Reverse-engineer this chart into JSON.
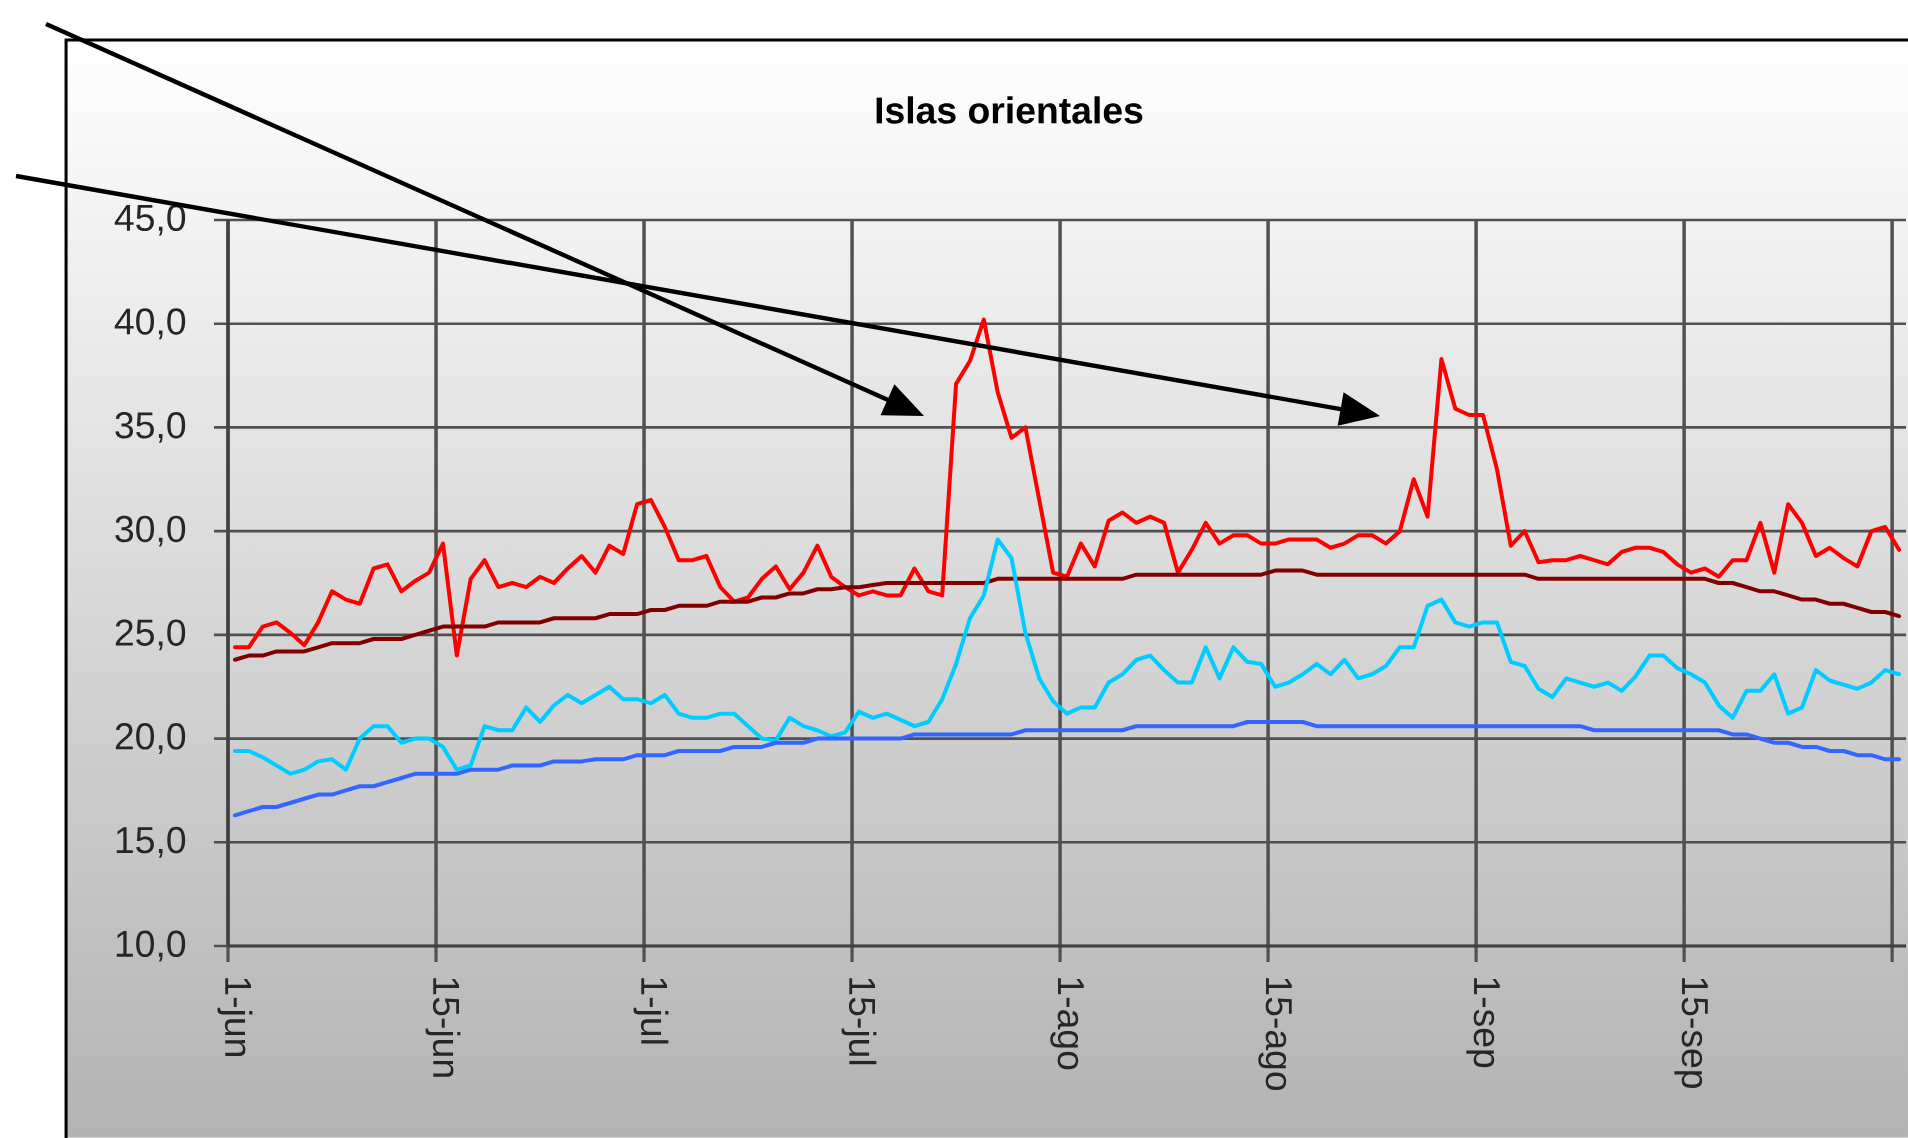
{
  "chart_data": {
    "type": "line",
    "title": "Islas orientales",
    "categories": [
      "1-jun",
      null,
      null,
      null,
      null,
      null,
      null,
      null,
      null,
      null,
      null,
      null,
      null,
      null,
      null,
      "15-jun",
      null,
      null,
      null,
      null,
      null,
      null,
      null,
      null,
      null,
      null,
      null,
      null,
      null,
      null,
      "1-jul",
      null,
      null,
      null,
      null,
      null,
      null,
      null,
      null,
      null,
      null,
      null,
      null,
      null,
      null,
      "15-jul",
      null,
      null,
      null,
      null,
      null,
      null,
      null,
      null,
      null,
      null,
      null,
      null,
      null,
      null,
      "1-ago",
      null,
      null,
      null,
      null,
      null,
      null,
      null,
      null,
      null,
      null,
      null,
      null,
      null,
      null,
      "15-ago",
      null,
      null,
      null,
      null,
      null,
      null,
      null,
      null,
      null,
      null,
      null,
      null,
      null,
      null,
      "1-sep",
      null,
      null,
      null,
      null,
      null,
      null,
      null,
      null,
      null,
      null,
      null,
      null,
      null,
      null,
      "15-sep",
      null,
      null,
      null,
      null,
      null,
      null,
      null,
      null,
      null,
      null,
      null,
      null,
      null,
      null,
      null
    ],
    "series": [
      {
        "color": "#ff0000",
        "values": [
          24.4,
          24.4,
          25.4,
          25.6,
          25.1,
          24.5,
          25.6,
          27.1,
          26.7,
          26.5,
          28.2,
          28.4,
          27.1,
          27.6,
          28.0,
          29.4,
          24.0,
          27.7,
          28.6,
          27.3,
          27.5,
          27.3,
          27.8,
          27.5,
          28.2,
          28.8,
          28.0,
          29.3,
          28.9,
          31.3,
          31.5,
          30.2,
          28.6,
          28.6,
          28.8,
          27.3,
          26.6,
          26.8,
          27.7,
          28.3,
          27.2,
          28.0,
          29.3,
          27.8,
          27.3,
          26.9,
          27.1,
          26.9,
          26.9,
          28.2,
          27.1,
          26.9,
          37.1,
          38.2,
          40.2,
          36.7,
          34.5,
          35.0,
          31.5,
          28.0,
          27.8,
          29.4,
          28.3,
          30.5,
          30.9,
          30.4,
          30.7,
          30.4,
          28.0,
          29.1,
          30.4,
          29.4,
          29.8,
          29.8,
          29.4,
          29.4,
          29.6,
          29.6,
          29.6,
          29.2,
          29.4,
          29.8,
          29.8,
          29.4,
          30.0,
          32.5,
          30.7,
          38.3,
          35.9,
          35.6,
          35.6,
          33.0,
          29.3,
          30.0,
          28.5,
          28.6,
          28.6,
          28.8,
          28.6,
          28.4,
          29.0,
          29.2,
          29.2,
          29.0,
          28.4,
          28.0,
          28.2,
          27.8,
          28.6,
          28.6,
          30.4,
          28.0,
          31.3,
          30.4,
          28.8,
          29.2,
          28.7,
          28.3,
          30.0,
          30.2,
          29.1
        ]
      },
      {
        "color": "#800000",
        "values": [
          23.8,
          24.0,
          24.0,
          24.2,
          24.2,
          24.2,
          24.4,
          24.6,
          24.6,
          24.6,
          24.8,
          24.8,
          24.8,
          25.0,
          25.2,
          25.4,
          25.4,
          25.4,
          25.4,
          25.6,
          25.6,
          25.6,
          25.6,
          25.8,
          25.8,
          25.8,
          25.8,
          26.0,
          26.0,
          26.0,
          26.2,
          26.2,
          26.4,
          26.4,
          26.4,
          26.6,
          26.6,
          26.6,
          26.8,
          26.8,
          27.0,
          27.0,
          27.2,
          27.2,
          27.3,
          27.3,
          27.4,
          27.5,
          27.5,
          27.5,
          27.5,
          27.5,
          27.5,
          27.5,
          27.5,
          27.7,
          27.7,
          27.7,
          27.7,
          27.7,
          27.7,
          27.7,
          27.7,
          27.7,
          27.7,
          27.9,
          27.9,
          27.9,
          27.9,
          27.9,
          27.9,
          27.9,
          27.9,
          27.9,
          27.9,
          28.1,
          28.1,
          28.1,
          27.9,
          27.9,
          27.9,
          27.9,
          27.9,
          27.9,
          27.9,
          27.9,
          27.9,
          27.9,
          27.9,
          27.9,
          27.9,
          27.9,
          27.9,
          27.9,
          27.7,
          27.7,
          27.7,
          27.7,
          27.7,
          27.7,
          27.7,
          27.7,
          27.7,
          27.7,
          27.7,
          27.7,
          27.7,
          27.5,
          27.5,
          27.3,
          27.1,
          27.1,
          26.9,
          26.7,
          26.7,
          26.5,
          26.5,
          26.3,
          26.1,
          26.1,
          25.9
        ]
      },
      {
        "color": "#00ccff",
        "values": [
          19.4,
          19.4,
          19.1,
          18.7,
          18.3,
          18.5,
          18.9,
          19.0,
          18.5,
          20.0,
          20.6,
          20.6,
          19.8,
          20.0,
          20.0,
          19.6,
          18.5,
          18.7,
          20.6,
          20.4,
          20.4,
          21.5,
          20.8,
          21.6,
          22.1,
          21.7,
          22.1,
          22.5,
          21.9,
          21.9,
          21.7,
          22.1,
          21.2,
          21.0,
          21.0,
          21.2,
          21.2,
          20.6,
          20.0,
          19.9,
          21.0,
          20.6,
          20.4,
          20.1,
          20.3,
          21.3,
          21.0,
          21.2,
          20.9,
          20.6,
          20.8,
          21.9,
          23.6,
          25.8,
          26.9,
          29.6,
          28.7,
          25.1,
          22.9,
          21.8,
          21.2,
          21.5,
          21.5,
          22.7,
          23.1,
          23.8,
          24.0,
          23.3,
          22.7,
          22.7,
          24.4,
          22.9,
          24.4,
          23.7,
          23.6,
          22.5,
          22.7,
          23.1,
          23.6,
          23.1,
          23.8,
          22.9,
          23.1,
          23.5,
          24.4,
          24.4,
          26.4,
          26.7,
          25.6,
          25.4,
          25.6,
          25.6,
          23.7,
          23.5,
          22.4,
          22.0,
          22.9,
          22.7,
          22.5,
          22.7,
          22.3,
          23.0,
          24.0,
          24.0,
          23.4,
          23.1,
          22.7,
          21.6,
          21.0,
          22.3,
          22.3,
          23.1,
          21.2,
          21.5,
          23.3,
          22.8,
          22.6,
          22.4,
          22.7,
          23.3,
          23.1
        ]
      },
      {
        "color": "#3366ff",
        "values": [
          16.3,
          16.5,
          16.7,
          16.7,
          16.9,
          17.1,
          17.3,
          17.3,
          17.5,
          17.7,
          17.7,
          17.9,
          18.1,
          18.3,
          18.3,
          18.3,
          18.3,
          18.5,
          18.5,
          18.5,
          18.7,
          18.7,
          18.7,
          18.9,
          18.9,
          18.9,
          19.0,
          19.0,
          19.0,
          19.2,
          19.2,
          19.2,
          19.4,
          19.4,
          19.4,
          19.4,
          19.6,
          19.6,
          19.6,
          19.8,
          19.8,
          19.8,
          20.0,
          20.0,
          20.0,
          20.0,
          20.0,
          20.0,
          20.0,
          20.2,
          20.2,
          20.2,
          20.2,
          20.2,
          20.2,
          20.2,
          20.2,
          20.4,
          20.4,
          20.4,
          20.4,
          20.4,
          20.4,
          20.4,
          20.4,
          20.6,
          20.6,
          20.6,
          20.6,
          20.6,
          20.6,
          20.6,
          20.6,
          20.8,
          20.8,
          20.8,
          20.8,
          20.8,
          20.6,
          20.6,
          20.6,
          20.6,
          20.6,
          20.6,
          20.6,
          20.6,
          20.6,
          20.6,
          20.6,
          20.6,
          20.6,
          20.6,
          20.6,
          20.6,
          20.6,
          20.6,
          20.6,
          20.6,
          20.4,
          20.4,
          20.4,
          20.4,
          20.4,
          20.4,
          20.4,
          20.4,
          20.4,
          20.4,
          20.2,
          20.2,
          20.0,
          19.8,
          19.8,
          19.6,
          19.6,
          19.4,
          19.4,
          19.2,
          19.2,
          19.0,
          19.0
        ]
      }
    ],
    "ylim": [
      10,
      45
    ],
    "yticks": [
      {
        "value": 10,
        "label": "10,0"
      },
      {
        "value": 15,
        "label": "15,0"
      },
      {
        "value": 20,
        "label": "20,0"
      },
      {
        "value": 25,
        "label": "25,0"
      },
      {
        "value": 30,
        "label": "30,0"
      },
      {
        "value": 35,
        "label": "35,0"
      },
      {
        "value": 40,
        "label": "40,0"
      },
      {
        "value": 45,
        "label": "45,0"
      }
    ],
    "grid": true,
    "line_style": "solid"
  }
}
